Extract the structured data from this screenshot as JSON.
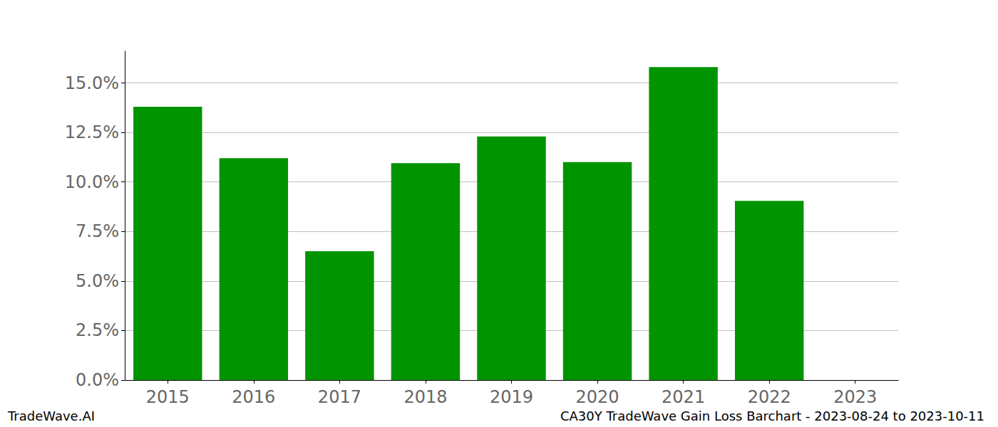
{
  "chart_data": {
    "type": "bar",
    "title": "CA30Y TradeWave Gain Loss Barchart - 2023-08-24 to 2023-10-11",
    "annotations": [
      "TradeWave.AI"
    ],
    "categories": [
      "2015",
      "2016",
      "2017",
      "2018",
      "2019",
      "2020",
      "2021",
      "2022",
      "2023"
    ],
    "values": [
      13.8,
      11.2,
      6.5,
      10.95,
      12.3,
      11.0,
      15.8,
      9.05,
      null
    ],
    "color": "#009400",
    "ylim": [
      0,
      16.6
    ],
    "yticks": [
      {
        "value": 0,
        "label": "0.0%"
      },
      {
        "value": 2.5,
        "label": "2.5%"
      },
      {
        "value": 5,
        "label": "5.0%"
      },
      {
        "value": 7.5,
        "label": "7.5%"
      },
      {
        "value": 10,
        "label": "10.0%"
      },
      {
        "value": 12.5,
        "label": "12.5%"
      },
      {
        "value": 15,
        "label": "15.0%"
      }
    ],
    "grid": true
  }
}
